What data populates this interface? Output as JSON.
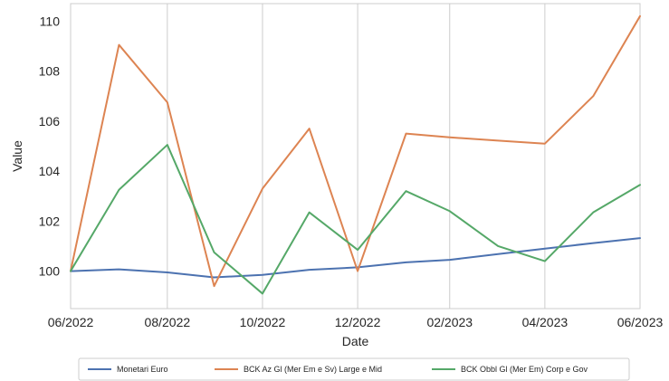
{
  "chart_data": {
    "type": "line",
    "title": "",
    "xlabel": "Date",
    "ylabel": "Value",
    "x": [
      "2022-06-30",
      "2022-07-31",
      "2022-08-31",
      "2022-09-30",
      "2022-10-31",
      "2022-11-30",
      "2022-12-31",
      "2023-01-31",
      "2023-02-28",
      "2023-03-31",
      "2023-04-30",
      "2023-05-31",
      "2023-06-30"
    ],
    "xticks": [
      {
        "date": "2022-06-30",
        "label": "06/2022"
      },
      {
        "date": "2022-08-31",
        "label": "08/2022"
      },
      {
        "date": "2022-10-31",
        "label": "10/2022"
      },
      {
        "date": "2022-12-31",
        "label": "12/2022"
      },
      {
        "date": "2023-02-28",
        "label": "02/2023"
      },
      {
        "date": "2023-04-30",
        "label": "04/2023"
      },
      {
        "date": "2023-06-30",
        "label": "06/2023"
      }
    ],
    "yticks": [
      100,
      102,
      104,
      106,
      108,
      110
    ],
    "ylim": [
      98.5,
      110.7
    ],
    "grid": "vertical",
    "legend_position": "bottom",
    "series": [
      {
        "name": "Monetari Euro",
        "color": "#4c72b0",
        "values": [
          100.0,
          100.07,
          99.95,
          99.75,
          99.85,
          100.05,
          100.15,
          100.35,
          100.45,
          100.68,
          100.9,
          101.12,
          101.32
        ]
      },
      {
        "name": "BCK Az Gl (Mer Em e Sv) Large e Mid",
        "color": "#dd8452",
        "values": [
          100.0,
          109.05,
          106.75,
          99.4,
          103.3,
          105.7,
          100.0,
          105.5,
          105.35,
          105.22,
          105.1,
          107.0,
          110.2
        ]
      },
      {
        "name": "BCK Obbl Gl (Mer Em) Corp e Gov",
        "color": "#55a868",
        "values": [
          100.0,
          103.25,
          105.05,
          100.75,
          99.1,
          102.35,
          100.85,
          103.2,
          102.4,
          101.0,
          100.4,
          102.35,
          103.45
        ]
      }
    ]
  }
}
